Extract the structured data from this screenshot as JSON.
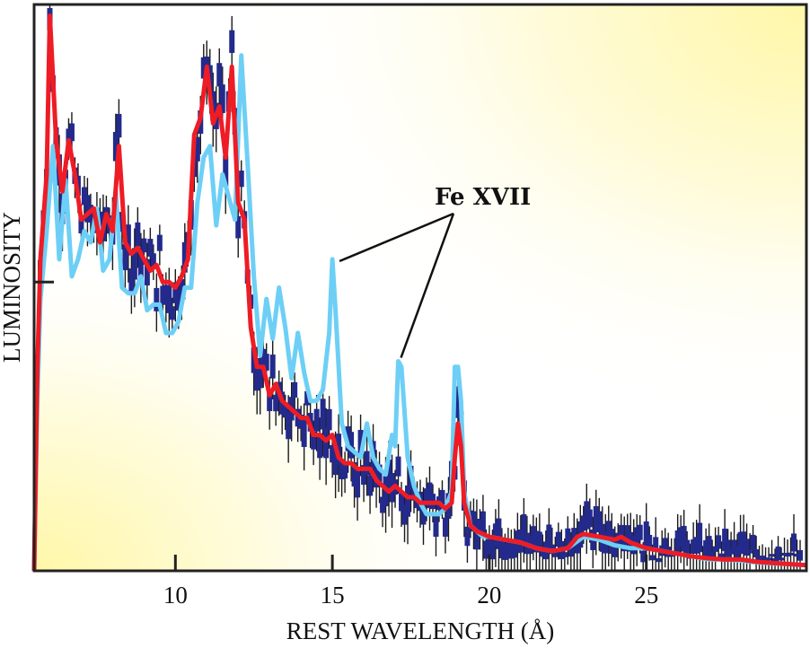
{
  "chart_data": {
    "type": "line",
    "title": "",
    "xlabel": "REST WAVELENGTH (Å)",
    "ylabel": "LUMINOSITY",
    "xlim": [
      5.5,
      30.1
    ],
    "ylim": [
      0,
      1
    ],
    "x_ticks": [
      10,
      15,
      20,
      25
    ],
    "x_tick_labels": [
      "10",
      "15",
      "20",
      "25"
    ],
    "y_ticks": [
      0.51
    ],
    "grid": false,
    "legend": "none",
    "colors": {
      "data": "#232a8c",
      "errorbar": "#1a1a1a",
      "model_red": "#ee1c25",
      "model_cyan": "#6dcff6",
      "background_glow": "#fff7a8",
      "frame": "#222222"
    },
    "annotations": [
      {
        "text": "Fe XVII",
        "points_to_x": [
          15.0,
          17.1
        ]
      }
    ],
    "series": [
      {
        "name": "model-cyan",
        "x": [
          5.5,
          5.6,
          5.7,
          5.9,
          6.1,
          6.3,
          6.5,
          6.7,
          6.9,
          7.1,
          7.3,
          7.5,
          7.7,
          7.9,
          8.1,
          8.3,
          8.5,
          8.7,
          8.9,
          9.1,
          9.3,
          9.5,
          9.7,
          9.9,
          10.1,
          10.3,
          10.5,
          10.7,
          10.9,
          11.1,
          11.3,
          11.5,
          11.7,
          11.9,
          12.1,
          12.3,
          12.5,
          12.7,
          12.9,
          13.1,
          13.3,
          13.5,
          13.7,
          13.9,
          14.1,
          14.3,
          14.5,
          14.7,
          14.9,
          15.0,
          15.1,
          15.3,
          15.5,
          15.7,
          15.9,
          16.1,
          16.3,
          16.5,
          16.7,
          16.9,
          17.0,
          17.1,
          17.2,
          17.4,
          17.6,
          17.8,
          18.0,
          18.2,
          18.4,
          18.6,
          18.8,
          18.9,
          19.0,
          19.1,
          19.2,
          19.4,
          19.6,
          19.8,
          20.0,
          20.5,
          21.0,
          21.5,
          22.0,
          22.5,
          23.0,
          23.5,
          24.0,
          24.5,
          25.0,
          25.5,
          26.0,
          26.5,
          27.0,
          27.5,
          28.0,
          28.5,
          29.0,
          29.5,
          30.1
        ],
        "values": [
          0.0,
          0.3,
          0.48,
          0.6,
          0.75,
          0.55,
          0.69,
          0.52,
          0.55,
          0.6,
          0.58,
          0.64,
          0.53,
          0.55,
          0.67,
          0.5,
          0.49,
          0.49,
          0.52,
          0.46,
          0.47,
          0.47,
          0.42,
          0.42,
          0.44,
          0.5,
          0.5,
          0.65,
          0.73,
          0.75,
          0.61,
          0.7,
          0.66,
          0.62,
          0.91,
          0.72,
          0.52,
          0.38,
          0.48,
          0.41,
          0.5,
          0.43,
          0.34,
          0.42,
          0.35,
          0.3,
          0.3,
          0.32,
          0.42,
          0.55,
          0.46,
          0.26,
          0.22,
          0.21,
          0.2,
          0.26,
          0.2,
          0.18,
          0.17,
          0.24,
          0.22,
          0.37,
          0.36,
          0.2,
          0.15,
          0.12,
          0.1,
          0.1,
          0.1,
          0.11,
          0.14,
          0.36,
          0.36,
          0.3,
          0.14,
          0.08,
          0.07,
          0.06,
          0.06,
          0.055,
          0.05,
          0.04,
          0.035,
          0.04,
          0.06,
          0.055,
          0.045,
          0.04,
          0.04,
          0.035,
          0.03,
          0.025,
          0.02,
          0.02,
          0.018,
          0.015,
          0.013,
          0.012,
          0.01
        ]
      },
      {
        "name": "model-red",
        "x": [
          5.5,
          5.6,
          5.7,
          5.9,
          6.0,
          6.2,
          6.4,
          6.6,
          6.8,
          7.0,
          7.2,
          7.4,
          7.6,
          7.8,
          8.0,
          8.2,
          8.4,
          8.6,
          8.8,
          9.0,
          9.2,
          9.4,
          9.6,
          9.8,
          10.0,
          10.2,
          10.4,
          10.6,
          10.8,
          11.0,
          11.2,
          11.4,
          11.6,
          11.8,
          12.0,
          12.2,
          12.4,
          12.6,
          12.8,
          13.0,
          13.2,
          13.4,
          13.6,
          13.8,
          14.0,
          14.2,
          14.4,
          14.6,
          14.8,
          15.0,
          15.2,
          15.4,
          15.6,
          15.8,
          16.0,
          16.2,
          16.4,
          16.6,
          16.8,
          17.0,
          17.2,
          17.4,
          17.6,
          17.8,
          18.0,
          18.2,
          18.4,
          18.6,
          18.8,
          18.9,
          19.0,
          19.1,
          19.2,
          19.4,
          19.6,
          19.8,
          20.0,
          20.5,
          21.0,
          21.5,
          22.0,
          22.5,
          22.8,
          23.0,
          23.5,
          24.0,
          24.2,
          24.5,
          25.0,
          25.5,
          26.0,
          26.5,
          27.0,
          27.5,
          28.0,
          28.5,
          29.0,
          29.5,
          30.1
        ],
        "values": [
          0.0,
          0.35,
          0.55,
          0.7,
          0.98,
          0.76,
          0.67,
          0.76,
          0.7,
          0.62,
          0.63,
          0.64,
          0.58,
          0.63,
          0.6,
          0.75,
          0.58,
          0.56,
          0.57,
          0.55,
          0.53,
          0.54,
          0.51,
          0.51,
          0.5,
          0.52,
          0.55,
          0.77,
          0.8,
          0.89,
          0.79,
          0.82,
          0.73,
          0.89,
          0.65,
          0.62,
          0.43,
          0.36,
          0.36,
          0.31,
          0.33,
          0.3,
          0.29,
          0.28,
          0.27,
          0.27,
          0.24,
          0.24,
          0.23,
          0.24,
          0.2,
          0.19,
          0.19,
          0.18,
          0.18,
          0.18,
          0.16,
          0.15,
          0.14,
          0.15,
          0.14,
          0.13,
          0.13,
          0.12,
          0.12,
          0.12,
          0.12,
          0.11,
          0.12,
          0.2,
          0.26,
          0.22,
          0.12,
          0.08,
          0.07,
          0.065,
          0.06,
          0.055,
          0.05,
          0.04,
          0.035,
          0.04,
          0.06,
          0.065,
          0.06,
          0.055,
          0.06,
          0.05,
          0.04,
          0.035,
          0.03,
          0.025,
          0.022,
          0.02,
          0.02,
          0.016,
          0.014,
          0.012,
          0.01
        ]
      }
    ]
  }
}
